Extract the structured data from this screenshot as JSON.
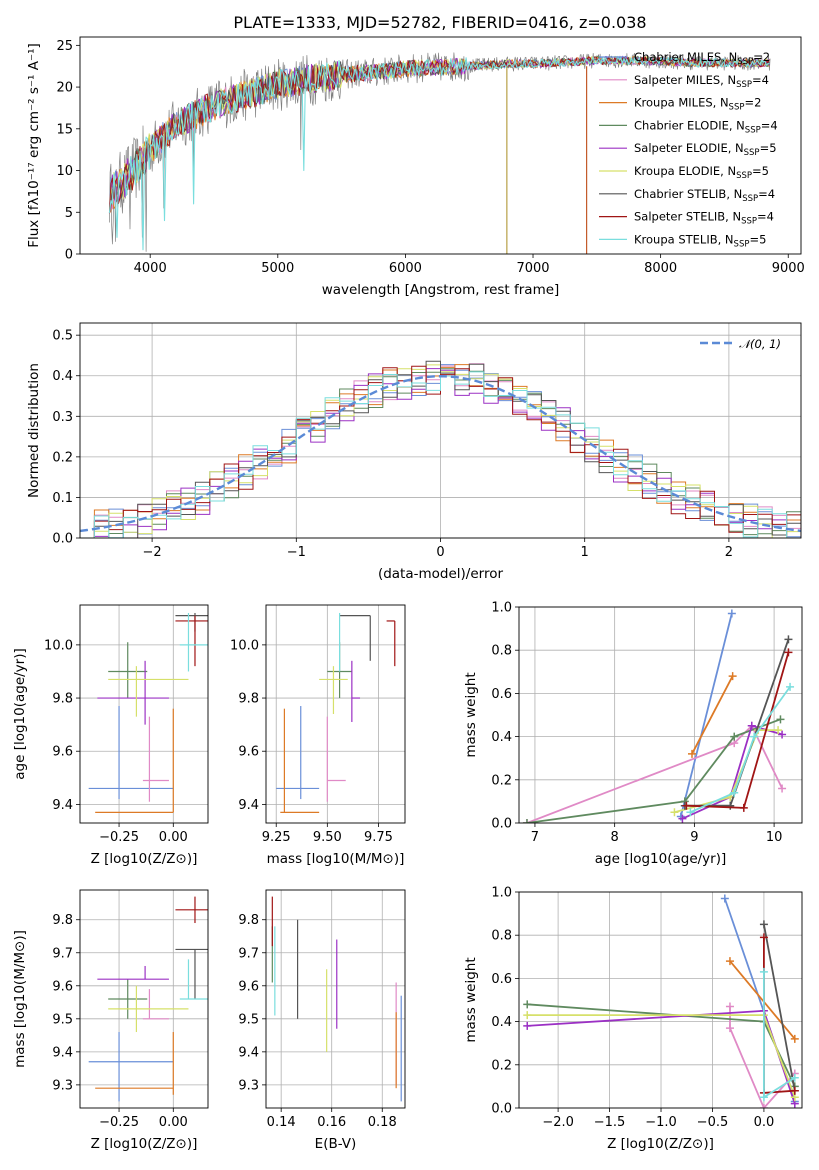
{
  "figure": {
    "title": "PLATE=1333, MJD=52782, FIBERID=0416, z=0.038"
  },
  "chart_data": [
    {
      "id": "spectrum",
      "type": "line",
      "title": "PLATE=1333, MJD=52782, FIBERID=0416, z=0.038",
      "xlabel": "wavelength [Angstrom, rest frame]",
      "ylabel": "Flux [fλ10⁻¹⁷ erg cm⁻² s⁻¹ A⁻¹]",
      "xlim": [
        3450,
        9100
      ],
      "ylim": [
        0,
        26
      ],
      "xticks": [
        4000,
        5000,
        6000,
        7000,
        8000,
        9000
      ],
      "yticks": [
        0,
        5,
        10,
        15,
        20,
        25
      ],
      "grid": false,
      "legend_position": "right",
      "continuum": {
        "x": [
          3680,
          3900,
          4000,
          4200,
          4500,
          4800,
          5000,
          5200,
          5500,
          5800,
          6000,
          6300,
          6600,
          6800,
          7000,
          7300,
          7500,
          7800,
          8000,
          8300,
          8600,
          8850
        ],
        "y": [
          7.0,
          10.5,
          12.5,
          15.5,
          17.8,
          19.3,
          20.3,
          20.8,
          21.5,
          21.8,
          22.2,
          22.4,
          22.6,
          22.8,
          22.8,
          23.0,
          23.2,
          23.2,
          23.1,
          22.9,
          22.9,
          22.9
        ]
      },
      "series": [
        {
          "name": "Chabrier MILES, N_SSP=2",
          "color": "#6a8fd8"
        },
        {
          "name": "Salpeter MILES, N_SSP=4",
          "color": "#e08ac6"
        },
        {
          "name": "Kroupa MILES, N_SSP=2",
          "color": "#dd7a26"
        },
        {
          "name": "Chabrier ELODIE, N_SSP=4",
          "color": "#5f8a5f"
        },
        {
          "name": "Salpeter ELODIE, N_SSP=5",
          "color": "#9b30c4"
        },
        {
          "name": "Kroupa ELODIE, N_SSP=5",
          "color": "#d6e06a"
        },
        {
          "name": "Chabrier STELIB, N_SSP=4",
          "color": "#555555"
        },
        {
          "name": "Salpeter STELIB, N_SSP=4",
          "color": "#a01515"
        },
        {
          "name": "Kroupa STELIB, N_SSP=5",
          "color": "#7adede"
        }
      ],
      "data_color": "#808080"
    },
    {
      "id": "residuals",
      "type": "line",
      "xlabel": "(data-model)/error",
      "ylabel": "Normed distribution",
      "xlim": [
        -2.5,
        2.5
      ],
      "ylim": [
        0,
        0.53
      ],
      "xticks": [
        -2,
        -1,
        0,
        1,
        2
      ],
      "yticks": [
        0.0,
        0.1,
        0.2,
        0.3,
        0.4,
        0.5
      ],
      "grid": true,
      "legend_position": "top-right",
      "legend": "𝒩(0, 1)"
    },
    {
      "id": "age_vs_Z",
      "type": "scatter",
      "xlabel": "Z [log10(Z/Z⊙)]",
      "ylabel": "age  [log10(age/yr)]",
      "xlim": [
        -0.43,
        0.16
      ],
      "ylim": [
        9.33,
        10.15
      ],
      "xticks": [
        -0.25,
        0.0
      ],
      "yticks": [
        9.4,
        9.6,
        9.8,
        10.0
      ],
      "grid": true,
      "points": [
        {
          "x": -0.25,
          "y": 9.46,
          "xerr": [
            0.14,
            0.25
          ],
          "yerr": [
            0.04,
            0.31
          ],
          "c": 0
        },
        {
          "x": -0.11,
          "y": 9.49,
          "xerr": [
            0.03,
            0.09
          ],
          "yerr": [
            0.08,
            0.24
          ],
          "c": 1
        },
        {
          "x": 0.0,
          "y": 9.37,
          "xerr": [
            0.36,
            0.0
          ],
          "yerr": [
            0.0,
            0.39
          ],
          "c": 2
        },
        {
          "x": -0.21,
          "y": 9.9,
          "xerr": [
            0.09,
            0.09
          ],
          "yerr": [
            0.1,
            0.11
          ],
          "c": 3
        },
        {
          "x": -0.13,
          "y": 9.8,
          "xerr": [
            0.22,
            0.11
          ],
          "yerr": [
            0.1,
            0.14
          ],
          "c": 4
        },
        {
          "x": -0.17,
          "y": 9.87,
          "xerr": [
            0.13,
            0.24
          ],
          "yerr": [
            0.14,
            0.05
          ],
          "c": 5
        },
        {
          "x": 0.1,
          "y": 10.11,
          "xerr": [
            0.09,
            0.06
          ],
          "yerr": [
            0.06,
            0.01
          ],
          "c": 6
        },
        {
          "x": 0.1,
          "y": 10.09,
          "xerr": [
            0.09,
            0.06
          ],
          "yerr": [
            0.17,
            0.02
          ],
          "c": 7
        },
        {
          "x": 0.07,
          "y": 10.0,
          "xerr": [
            0.04,
            0.09
          ],
          "yerr": [
            0.1,
            0.12
          ],
          "c": 8
        }
      ]
    },
    {
      "id": "age_vs_mass",
      "type": "scatter",
      "xlabel": "mass [log10(M/M⊙)]",
      "ylabel": "",
      "xlim": [
        9.2,
        9.88
      ],
      "ylim": [
        9.33,
        10.15
      ],
      "xticks": [
        9.25,
        9.5,
        9.75
      ],
      "yticks": [
        9.4,
        9.6,
        9.8,
        10.0
      ],
      "grid": true,
      "points": [
        {
          "x": 9.37,
          "y": 9.46,
          "xerr": [
            0.12,
            0.09
          ],
          "yerr": [
            0.04,
            0.31
          ],
          "c": 0
        },
        {
          "x": 9.5,
          "y": 9.49,
          "xerr": [
            0.0,
            0.09
          ],
          "yerr": [
            0.08,
            0.24
          ],
          "c": 1
        },
        {
          "x": 9.29,
          "y": 9.37,
          "xerr": [
            0.02,
            0.17
          ],
          "yerr": [
            0.0,
            0.39
          ],
          "c": 2
        },
        {
          "x": 9.56,
          "y": 9.9,
          "xerr": [
            0.06,
            0.06
          ],
          "yerr": [
            0.1,
            0.11
          ],
          "c": 3
        },
        {
          "x": 9.62,
          "y": 9.8,
          "xerr": [
            0.0,
            0.04
          ],
          "yerr": [
            0.09,
            0.14
          ],
          "c": 4
        },
        {
          "x": 9.53,
          "y": 9.87,
          "xerr": [
            0.07,
            0.07
          ],
          "yerr": [
            0.13,
            0.05
          ],
          "c": 5
        },
        {
          "x": 9.71,
          "y": 10.11,
          "xerr": [
            0.15,
            0.0
          ],
          "yerr": [
            0.17,
            0.0
          ],
          "c": 6
        },
        {
          "x": 9.83,
          "y": 10.09,
          "xerr": [
            0.04,
            0.0
          ],
          "yerr": [
            0.17,
            0.0
          ],
          "c": 7
        },
        {
          "x": 9.56,
          "y": 10.0,
          "xerr": [
            0.0,
            0.0
          ],
          "yerr": [
            0.1,
            0.12
          ],
          "c": 8
        }
      ]
    },
    {
      "id": "weight_vs_age",
      "type": "line",
      "xlabel": "age  [log10(age/yr)]",
      "ylabel": "mass weight",
      "xlim": [
        6.8,
        10.35
      ],
      "ylim": [
        0,
        1
      ],
      "xticks": [
        7,
        8,
        9,
        10
      ],
      "yticks": [
        0.0,
        0.2,
        0.4,
        0.6,
        0.8,
        1.0
      ],
      "grid": true,
      "series": [
        {
          "c": 0,
          "x": [
            8.83,
            9.47
          ],
          "y": [
            0.03,
            0.97
          ]
        },
        {
          "c": 1,
          "x": [
            6.9,
            9.5,
            9.72,
            10.1
          ],
          "y": [
            0.0,
            0.37,
            0.45,
            0.16
          ]
        },
        {
          "c": 2,
          "x": [
            8.97,
            9.48
          ],
          "y": [
            0.32,
            0.68
          ]
        },
        {
          "c": 3,
          "x": [
            6.9,
            8.88,
            9.5,
            10.08
          ],
          "y": [
            0.0,
            0.1,
            0.4,
            0.48
          ]
        },
        {
          "c": 4,
          "x": [
            8.85,
            9.45,
            9.72,
            10.1
          ],
          "y": [
            0.02,
            0.12,
            0.45,
            0.41
          ]
        },
        {
          "c": 5,
          "x": [
            8.75,
            9.45,
            9.8,
            10.05
          ],
          "y": [
            0.05,
            0.12,
            0.43,
            0.43
          ]
        },
        {
          "c": 6,
          "x": [
            8.88,
            9.45,
            10.18
          ],
          "y": [
            0.08,
            0.08,
            0.85
          ]
        },
        {
          "c": 7,
          "x": [
            8.9,
            9.62,
            10.18
          ],
          "y": [
            0.08,
            0.07,
            0.79
          ]
        },
        {
          "c": 8,
          "x": [
            8.95,
            9.5,
            9.75,
            10.2
          ],
          "y": [
            0.05,
            0.14,
            0.4,
            0.63
          ]
        }
      ]
    },
    {
      "id": "mass_vs_Z",
      "type": "scatter",
      "xlabel": "Z [log10(Z/Z⊙)]",
      "ylabel": "mass [log10(M/M⊙)]",
      "xlim": [
        -0.43,
        0.16
      ],
      "ylim": [
        9.23,
        9.89
      ],
      "xticks": [
        -0.25,
        0.0
      ],
      "yticks": [
        9.3,
        9.4,
        9.5,
        9.6,
        9.7,
        9.8
      ],
      "grid": true,
      "points": [
        {
          "x": -0.25,
          "y": 9.37,
          "xerr": [
            0.14,
            0.25
          ],
          "yerr": [
            0.12,
            0.09
          ],
          "c": 0
        },
        {
          "x": -0.11,
          "y": 9.5,
          "xerr": [
            0.03,
            0.09
          ],
          "yerr": [
            0.0,
            0.09
          ],
          "c": 1
        },
        {
          "x": 0.0,
          "y": 9.29,
          "xerr": [
            0.36,
            0.0
          ],
          "yerr": [
            0.02,
            0.17
          ],
          "c": 2
        },
        {
          "x": -0.21,
          "y": 9.56,
          "xerr": [
            0.09,
            0.09
          ],
          "yerr": [
            0.06,
            0.06
          ],
          "c": 3
        },
        {
          "x": -0.13,
          "y": 9.62,
          "xerr": [
            0.22,
            0.11
          ],
          "yerr": [
            0.0,
            0.04
          ],
          "c": 4
        },
        {
          "x": -0.17,
          "y": 9.53,
          "xerr": [
            0.13,
            0.24
          ],
          "yerr": [
            0.07,
            0.07
          ],
          "c": 5
        },
        {
          "x": 0.1,
          "y": 9.71,
          "xerr": [
            0.09,
            0.06
          ],
          "yerr": [
            0.15,
            0.0
          ],
          "c": 6
        },
        {
          "x": 0.1,
          "y": 9.83,
          "xerr": [
            0.09,
            0.06
          ],
          "yerr": [
            0.04,
            0.04
          ],
          "c": 7
        },
        {
          "x": 0.07,
          "y": 9.56,
          "xerr": [
            0.04,
            0.09
          ],
          "yerr": [
            0.0,
            0.12
          ],
          "c": 8
        }
      ]
    },
    {
      "id": "mass_vs_ebv",
      "type": "scatter",
      "xlabel": "E(B-V)",
      "ylabel": "",
      "xlim": [
        0.134,
        0.189
      ],
      "ylim": [
        9.23,
        9.89
      ],
      "xticks": [
        0.14,
        0.16,
        0.18
      ],
      "yticks": [
        9.3,
        9.4,
        9.5,
        9.6,
        9.7,
        9.8
      ],
      "grid": true,
      "points": [
        {
          "x": 0.1875,
          "y": 9.4,
          "yerr": [
            0.15,
            0.17
          ],
          "c": 0
        },
        {
          "x": 0.1855,
          "y": 9.45,
          "yerr": [
            0.15,
            0.16
          ],
          "c": 1
        },
        {
          "x": 0.1855,
          "y": 9.4,
          "yerr": [
            0.11,
            0.12
          ],
          "c": 2
        },
        {
          "x": 0.1365,
          "y": 9.7,
          "yerr": [
            0.09,
            0.08
          ],
          "c": 3
        },
        {
          "x": 0.162,
          "y": 9.6,
          "yerr": [
            0.13,
            0.14
          ],
          "c": 4
        },
        {
          "x": 0.158,
          "y": 9.52,
          "yerr": [
            0.12,
            0.13
          ],
          "c": 5
        },
        {
          "x": 0.1465,
          "y": 9.65,
          "yerr": [
            0.15,
            0.15
          ],
          "c": 6
        },
        {
          "x": 0.1365,
          "y": 9.76,
          "yerr": [
            0.04,
            0.11
          ],
          "c": 7
        },
        {
          "x": 0.1375,
          "y": 9.65,
          "yerr": [
            0.14,
            0.13
          ],
          "c": 8
        }
      ]
    },
    {
      "id": "weight_vs_Z",
      "type": "line",
      "xlabel": "Z [log10(Z/Z⊙)]",
      "ylabel": "mass weight",
      "xlim": [
        -2.38,
        0.37
      ],
      "ylim": [
        0,
        1
      ],
      "xticks": [
        -2.0,
        -1.5,
        -1.0,
        -0.5,
        0.0
      ],
      "yticks": [
        0.0,
        0.2,
        0.4,
        0.6,
        0.8,
        1.0
      ],
      "grid": true,
      "series": [
        {
          "c": 0,
          "x": [
            -0.38,
            0.3
          ],
          "y": [
            0.97,
            0.03
          ]
        },
        {
          "c": 1,
          "x": [
            -0.33,
            -0.33,
            0.0,
            0.3
          ],
          "y": [
            0.47,
            0.37,
            0.0,
            0.16
          ]
        },
        {
          "c": 2,
          "x": [
            -0.33,
            0.3
          ],
          "y": [
            0.68,
            0.32
          ]
        },
        {
          "c": 3,
          "x": [
            -2.3,
            0.0,
            0.3
          ],
          "y": [
            0.48,
            0.4,
            0.1
          ]
        },
        {
          "c": 4,
          "x": [
            -2.3,
            0.0,
            0.3
          ],
          "y": [
            0.38,
            0.45,
            0.02
          ]
        },
        {
          "c": 5,
          "x": [
            -2.3,
            0.0,
            0.3
          ],
          "y": [
            0.43,
            0.43,
            0.05
          ]
        },
        {
          "c": 6,
          "x": [
            0.0,
            0.3
          ],
          "y": [
            0.85,
            0.08
          ]
        },
        {
          "c": 7,
          "x": [
            0.0,
            0.0,
            0.3
          ],
          "y": [
            0.79,
            0.07,
            0.08
          ]
        },
        {
          "c": 8,
          "x": [
            0.0,
            0.0,
            0.3
          ],
          "y": [
            0.63,
            0.05,
            0.14
          ]
        }
      ]
    }
  ]
}
